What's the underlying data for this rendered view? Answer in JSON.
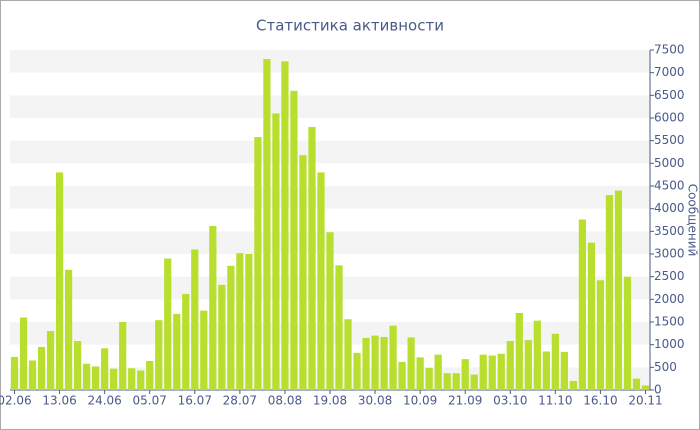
{
  "chart_data": {
    "type": "bar",
    "title": "Статистика активности",
    "y_label": "Сообщений",
    "categories": [
      "02.06",
      null,
      null,
      null,
      null,
      "13.06",
      null,
      null,
      null,
      null,
      "24.06",
      null,
      null,
      null,
      null,
      "05.07",
      null,
      null,
      null,
      null,
      "16.07",
      null,
      null,
      null,
      null,
      "28.07",
      null,
      null,
      null,
      null,
      "08.08",
      null,
      null,
      null,
      null,
      "19.08",
      null,
      null,
      null,
      null,
      "30.08",
      null,
      null,
      null,
      null,
      "10.09",
      null,
      null,
      null,
      null,
      "21.09",
      null,
      null,
      null,
      null,
      "03.10",
      null,
      null,
      null,
      null,
      "11.10",
      null,
      null,
      null,
      null,
      "16.10",
      null,
      null,
      null,
      null,
      "20.11"
    ],
    "values": [
      730,
      1600,
      650,
      950,
      1300,
      4800,
      2650,
      1080,
      580,
      520,
      920,
      470,
      1500,
      480,
      430,
      640,
      1540,
      2900,
      1680,
      2120,
      3100,
      1750,
      3620,
      2320,
      2740,
      3020,
      3000,
      5580,
      7300,
      6100,
      7250,
      6600,
      5180,
      5800,
      4800,
      3480,
      2750,
      1560,
      820,
      1150,
      1200,
      1170,
      1420,
      620,
      1160,
      720,
      490,
      780,
      370,
      370,
      680,
      340,
      780,
      760,
      800,
      1080,
      1700,
      1100,
      1530,
      850,
      1240,
      840,
      200,
      3760,
      3250,
      2420,
      4300,
      4400,
      2500,
      250,
      100
    ],
    "color": "#b8de2e",
    "ylim": [
      0,
      7500
    ],
    "yticks": [
      0,
      500,
      1000,
      1500,
      2000,
      2500,
      3000,
      3500,
      4000,
      4500,
      5000,
      5500,
      6000,
      6500,
      7000,
      7500
    ],
    "grid": true,
    "y_axis_side": "right"
  }
}
